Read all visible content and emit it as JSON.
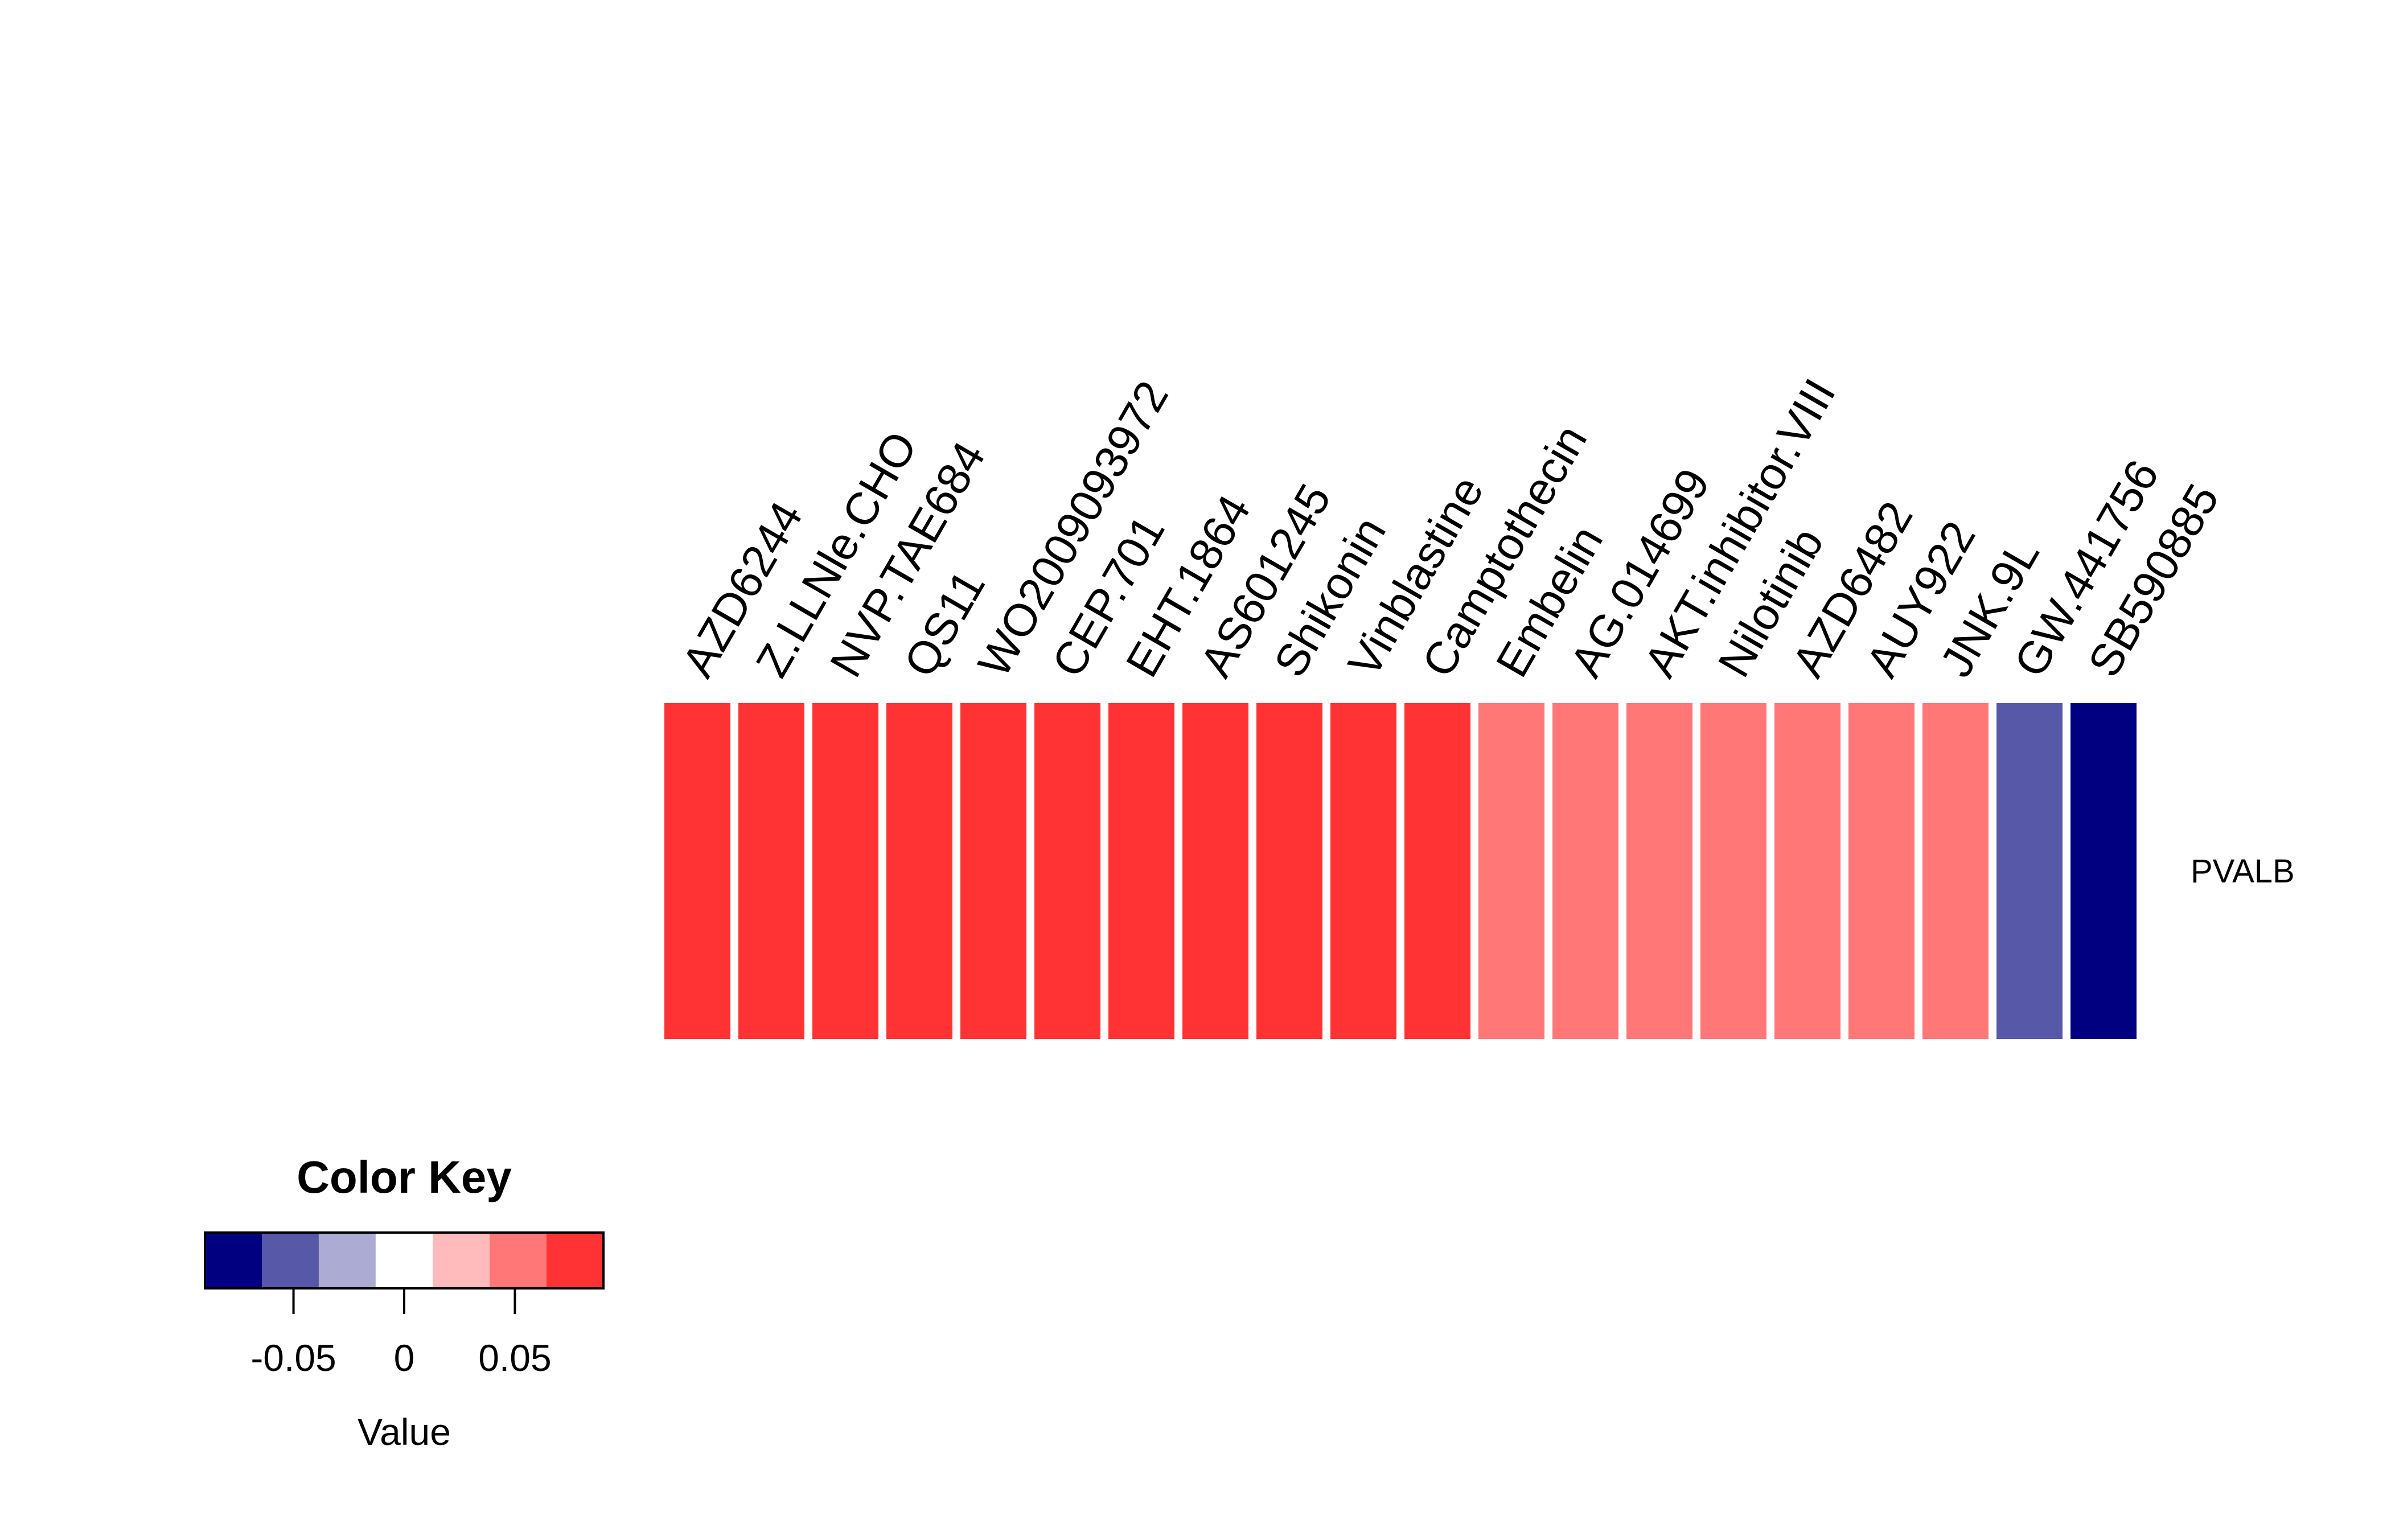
{
  "chart_data": {
    "type": "heatmap",
    "rows": [
      "PVALB"
    ],
    "columns": [
      "AZD6244",
      "Z.LLNle.CHO",
      "NVP.TAE684",
      "QS11",
      "WO2009093972",
      "CEP.701",
      "EHT.1864",
      "AS601245",
      "Shikonin",
      "Vinblastine",
      "Camptothecin",
      "Embelin",
      "AG.014699",
      "AKT.inhibitor.VIII",
      "Nilotinib",
      "AZD6482",
      "AUY922",
      "JNK.9L",
      "GW.441756",
      "SB590885"
    ],
    "values": [
      [
        0.08,
        0.08,
        0.08,
        0.08,
        0.08,
        0.08,
        0.08,
        0.08,
        0.08,
        0.08,
        0.08,
        0.055,
        0.055,
        0.055,
        0.055,
        0.055,
        0.055,
        0.055,
        -0.055,
        -0.08
      ]
    ],
    "color_key": {
      "title": "Color Key",
      "xlabel": "Value",
      "range": [
        -0.09,
        0.09
      ],
      "breaks": [
        -0.09,
        -0.0643,
        -0.0386,
        -0.0129,
        0.0129,
        0.0386,
        0.0643,
        0.09
      ],
      "colors": [
        "#000080",
        "#5858A8",
        "#ABABD4",
        "#FFFFFF",
        "#FFBBBB",
        "#FF7777",
        "#FF3333"
      ],
      "ticks": [
        -0.05,
        0,
        0.05
      ],
      "tick_labels": [
        "-0.05",
        "0",
        "0.05"
      ]
    }
  }
}
